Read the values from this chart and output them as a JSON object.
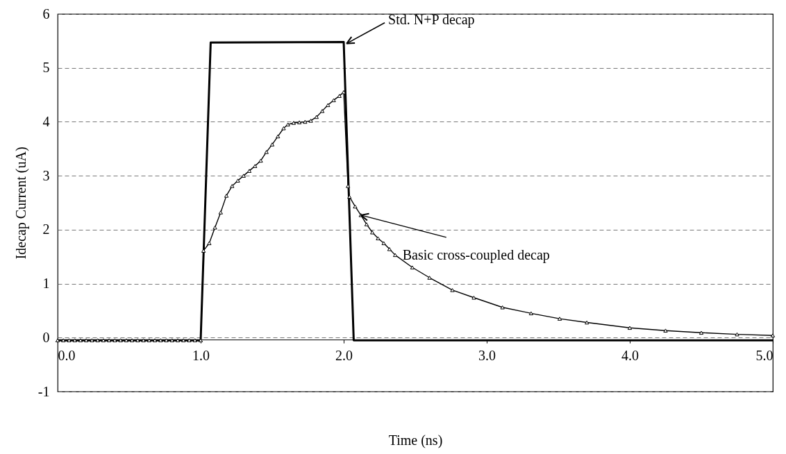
{
  "chart_data": {
    "type": "line",
    "xlabel": "Time (ns)",
    "ylabel": "Idecap Current (uA)",
    "xlim": [
      0,
      5
    ],
    "ylim": [
      -1,
      6
    ],
    "xticks": [
      {
        "value": 0,
        "label": "0.0"
      },
      {
        "value": 1,
        "label": "1.0"
      },
      {
        "value": 2,
        "label": "2.0"
      },
      {
        "value": 3,
        "label": "3.0"
      },
      {
        "value": 4,
        "label": "4.0"
      },
      {
        "value": 5,
        "label": "5.0"
      }
    ],
    "yticks": [
      -1,
      0,
      1,
      2,
      3,
      4,
      5,
      6
    ],
    "grid": "y",
    "series": [
      {
        "color": "#000000",
        "marker": "none",
        "line_style": "solid",
        "x": [
          0,
          1.0,
          1.07,
          2.0,
          2.07,
          5.0
        ],
        "values": [
          -0.05,
          -0.05,
          5.47,
          5.48,
          -0.05,
          -0.05
        ]
      },
      {
        "color": "#000000",
        "marker": "triangle",
        "line_style": "solid",
        "x": [
          0,
          0.04,
          0.08,
          0.12,
          0.16,
          0.2,
          0.24,
          0.28,
          0.32,
          0.36,
          0.4,
          0.44,
          0.48,
          0.52,
          0.56,
          0.6,
          0.64,
          0.68,
          0.72,
          0.76,
          0.8,
          0.84,
          0.88,
          0.92,
          0.96,
          1.0,
          1.02,
          1.06,
          1.1,
          1.14,
          1.18,
          1.22,
          1.26,
          1.3,
          1.34,
          1.38,
          1.42,
          1.46,
          1.5,
          1.54,
          1.58,
          1.61,
          1.65,
          1.69,
          1.73,
          1.77,
          1.81,
          1.85,
          1.89,
          1.93,
          1.97,
          2.0,
          2.03,
          2.04,
          2.08,
          2.12,
          2.16,
          2.2,
          2.24,
          2.28,
          2.32,
          2.36,
          2.48,
          2.6,
          2.76,
          2.91,
          3.11,
          3.31,
          3.51,
          3.7,
          4.0,
          4.25,
          4.5,
          4.75,
          5.0
        ],
        "values": [
          -0.05,
          -0.05,
          -0.05,
          -0.05,
          -0.05,
          -0.05,
          -0.05,
          -0.05,
          -0.05,
          -0.05,
          -0.05,
          -0.05,
          -0.05,
          -0.05,
          -0.05,
          -0.05,
          -0.05,
          -0.05,
          -0.05,
          -0.05,
          -0.05,
          -0.05,
          -0.05,
          -0.05,
          -0.05,
          -0.05,
          1.61,
          1.75,
          2.04,
          2.32,
          2.63,
          2.81,
          2.91,
          3.0,
          3.09,
          3.18,
          3.28,
          3.44,
          3.58,
          3.73,
          3.88,
          3.95,
          3.98,
          3.99,
          4.0,
          4.02,
          4.09,
          4.2,
          4.31,
          4.4,
          4.48,
          4.55,
          2.81,
          2.61,
          2.43,
          2.27,
          2.1,
          1.95,
          1.84,
          1.75,
          1.64,
          1.53,
          1.3,
          1.11,
          0.88,
          0.74,
          0.56,
          0.45,
          0.35,
          0.28,
          0.18,
          0.13,
          0.09,
          0.06,
          0.04
        ]
      }
    ],
    "annotations": [
      {
        "text": "Std. N+P decap",
        "x": 2.02,
        "y": 5.45
      },
      {
        "text": "Basic cross-coupled decap",
        "x": 2.12,
        "y": 2.27
      }
    ]
  }
}
